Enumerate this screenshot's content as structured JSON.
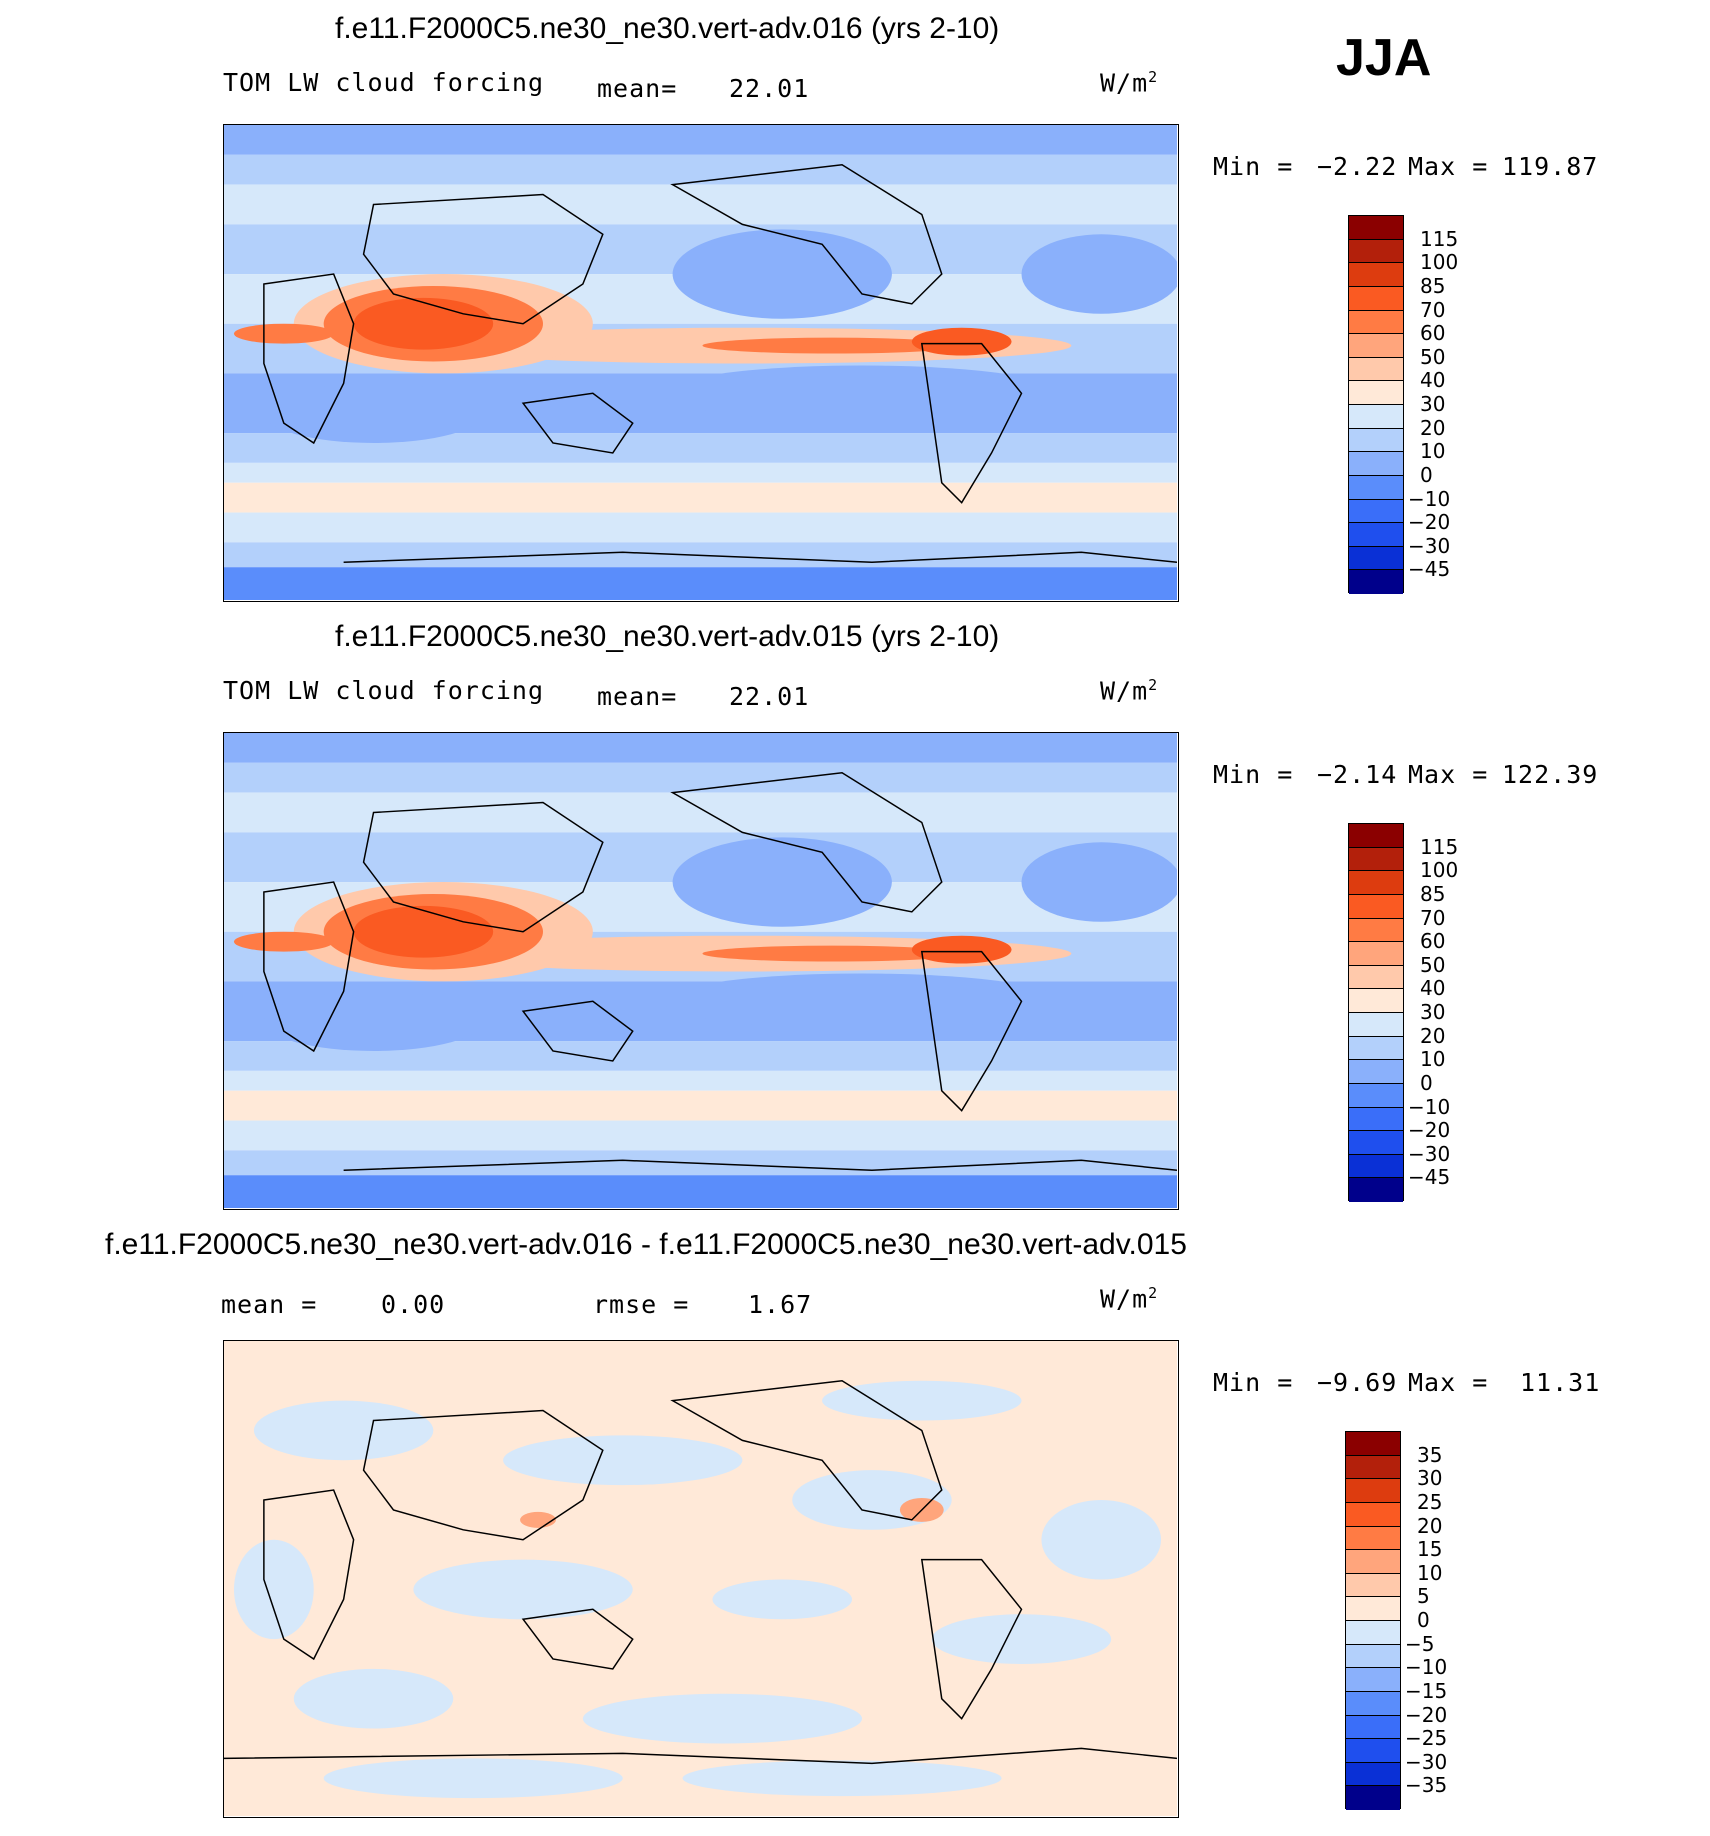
{
  "season": "JJA",
  "unit": "W/m",
  "unit_exp": "2",
  "panels": [
    {
      "title": "f.e11.F2000C5.ne30_ne30.vert-adv.016 (yrs 2-10)",
      "left_label": "TOM LW cloud forcing",
      "mid_label": "mean=",
      "mid_value": "22.01",
      "min_label": "Min =",
      "min_value": "−2.22",
      "max_label": "Max =",
      "max_value": "119.87"
    },
    {
      "title": "f.e11.F2000C5.ne30_ne30.vert-adv.015 (yrs 2-10)",
      "left_label": "TOM LW cloud forcing",
      "mid_label": "mean=",
      "mid_value": "22.01",
      "min_label": "Min =",
      "min_value": "−2.14",
      "max_label": "Max =",
      "max_value": "122.39"
    },
    {
      "title": "f.e11.F2000C5.ne30_ne30.vert-adv.016 - f.e11.F2000C5.ne30_ne30.vert-adv.015",
      "left_label": "mean =",
      "left_value": "0.00",
      "mid_label": "rmse =",
      "mid_value": "1.67",
      "min_label": "Min =",
      "min_value": "−9.69",
      "max_label": "Max =",
      "max_value": "11.31"
    }
  ],
  "colorbars": {
    "main": {
      "labels": [
        "115",
        "100",
        "85",
        "70",
        "60",
        "50",
        "40",
        "30",
        "20",
        "10",
        "0",
        "−10",
        "−20",
        "−30",
        "−45"
      ],
      "colors": [
        "#8b0000",
        "#b3200b",
        "#dd3c0f",
        "#fa5a22",
        "#ff7b44",
        "#ffa57c",
        "#ffc9ab",
        "#ffe9d8",
        "#d6e8fa",
        "#b3d0fb",
        "#8ab0fb",
        "#5a8dfb",
        "#3a6ef9",
        "#1f4fee",
        "#0a30d6",
        "#00008b"
      ]
    },
    "diff": {
      "labels": [
        "35",
        "30",
        "25",
        "20",
        "15",
        "10",
        "5",
        "0",
        "−5",
        "−10",
        "−15",
        "−20",
        "−25",
        "−30",
        "−35"
      ],
      "colors": [
        "#8b0000",
        "#b3200b",
        "#dd3c0f",
        "#fa5a22",
        "#ff7b44",
        "#ffa57c",
        "#ffc9ab",
        "#ffe9d8",
        "#d6e8fa",
        "#b3d0fb",
        "#8ab0fb",
        "#5a8dfb",
        "#3a6ef9",
        "#1f4fee",
        "#0a30d6",
        "#00008b"
      ]
    }
  },
  "chart_data": [
    {
      "type": "heatmap",
      "title": "f.e11.F2000C5.ne30_ne30.vert-adv.016 (yrs 2-10)",
      "variable": "TOM LW cloud forcing",
      "units": "W/m2",
      "mean": 22.01,
      "min": -2.22,
      "max": 119.87,
      "levels": [
        -45,
        -30,
        -20,
        -10,
        0,
        10,
        20,
        30,
        40,
        50,
        60,
        70,
        85,
        100,
        115
      ],
      "projection": "cylindrical equidistant, centered on 180"
    },
    {
      "type": "heatmap",
      "title": "f.e11.F2000C5.ne30_ne30.vert-adv.015 (yrs 2-10)",
      "variable": "TOM LW cloud forcing",
      "units": "W/m2",
      "mean": 22.01,
      "min": -2.14,
      "max": 122.39,
      "levels": [
        -45,
        -30,
        -20,
        -10,
        0,
        10,
        20,
        30,
        40,
        50,
        60,
        70,
        85,
        100,
        115
      ],
      "projection": "cylindrical equidistant, centered on 180"
    },
    {
      "type": "heatmap",
      "title": "f.e11.F2000C5.ne30_ne30.vert-adv.016 - f.e11.F2000C5.ne30_ne30.vert-adv.015",
      "units": "W/m2",
      "mean": 0.0,
      "rmse": 1.67,
      "min": -9.69,
      "max": 11.31,
      "levels": [
        -35,
        -30,
        -25,
        -20,
        -15,
        -10,
        -5,
        0,
        5,
        10,
        15,
        20,
        25,
        30,
        35
      ],
      "projection": "cylindrical equidistant, centered on 180"
    }
  ]
}
